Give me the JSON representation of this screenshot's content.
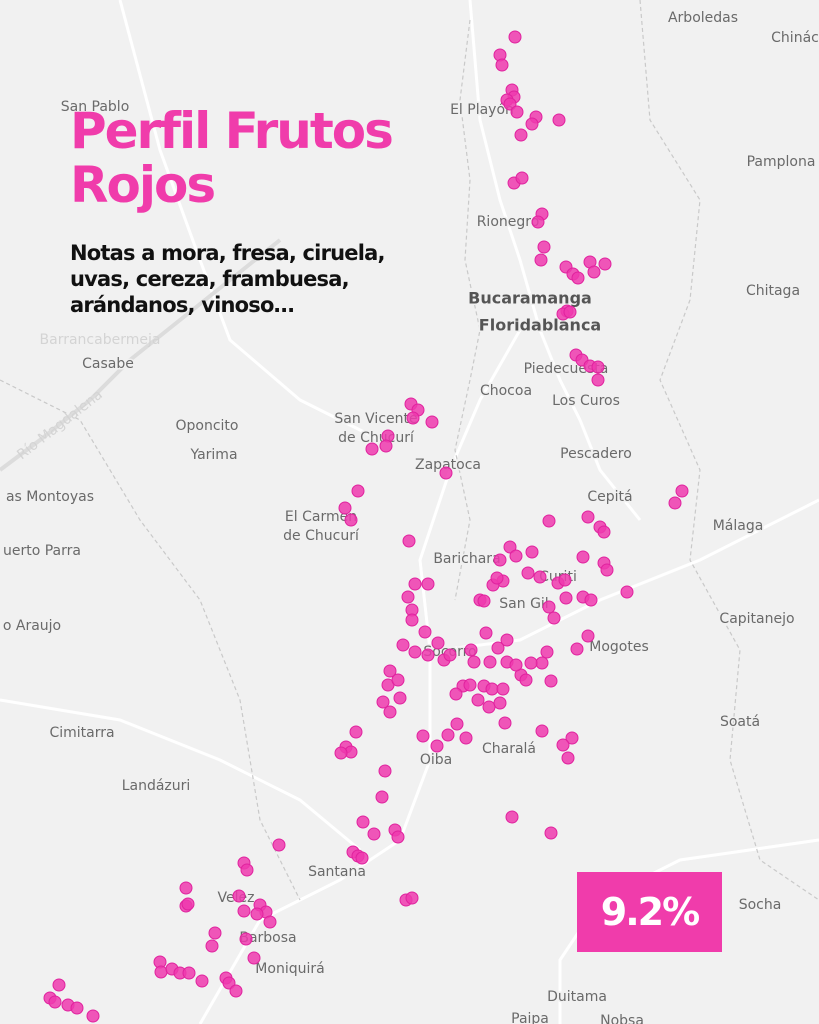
{
  "header": {
    "title": "Perfil Frutos Rojos",
    "subtitle": "Notas a mora, fresa, ciruela, uvas, cereza, frambuesa, arándanos, vinoso…"
  },
  "badge": "9.2%",
  "places": [
    "Arboledas",
    "Chinác",
    "San Pablo",
    "El Playón",
    "Pamplona",
    "Rionegro",
    "Chitaga",
    "Bucaramanga",
    "Floridablanca",
    "Casabe",
    "Piedecuesta",
    "Chocoa",
    "Los Curos",
    "Oponcito",
    "San Vicente",
    "de Chucurí",
    "Yarima",
    "Pescadero",
    "Zapatoca",
    "Cepitá",
    "as Montoyas",
    "Málaga",
    "El Carmen",
    "de Chucurí",
    "uerto Parra",
    "Barichara",
    "Curiti",
    "San Gil",
    "Capitanejo",
    "o Araujo",
    "Socorro",
    "Mogotes",
    "Soatá",
    "Cimitarra",
    "Charalá",
    "Oiba",
    "Landázuri",
    "Santana",
    "Socha",
    "Velez",
    "Barbosa",
    "Moniquirá",
    "Duitama",
    "Paipa",
    "Nobsa",
    "Río Magdalena",
    "Barrancabermeja"
  ]
}
